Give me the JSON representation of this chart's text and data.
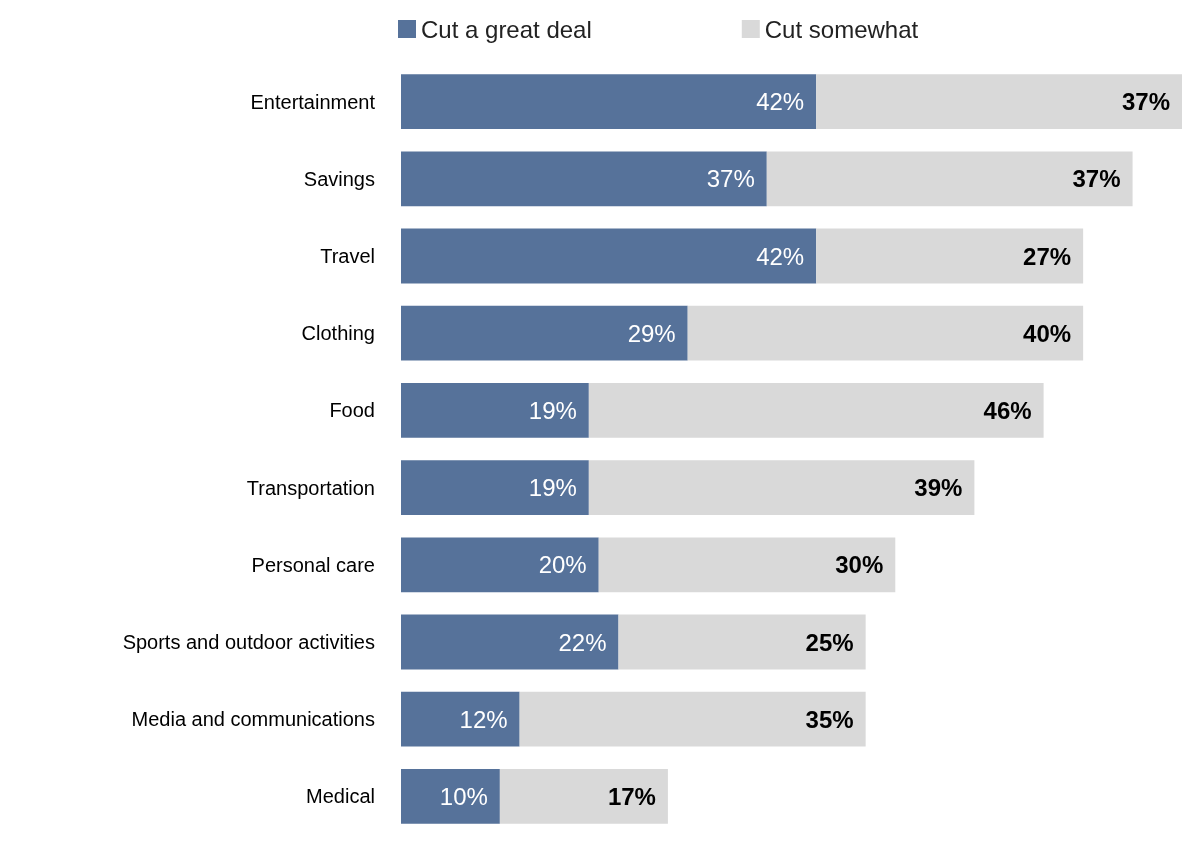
{
  "chart_data": {
    "type": "bar",
    "orientation": "horizontal",
    "stacked": true,
    "legend": "top",
    "categories": [
      "Entertainment",
      "Savings",
      "Travel",
      "Clothing",
      "Food",
      "Transportation",
      "Personal care",
      "Sports and outdoor activities",
      "Media and communications",
      "Medical"
    ],
    "series": [
      {
        "name": "Cut a great deal",
        "color": "#56729a",
        "values": [
          42,
          37,
          42,
          29,
          19,
          19,
          20,
          22,
          12,
          10
        ],
        "value_labels": [
          "42%",
          "37%",
          "42%",
          "29%",
          "19%",
          "19%",
          "20%",
          "22%",
          "12%",
          "10%"
        ]
      },
      {
        "name": "Cut somewhat",
        "color": "#d9d9d9",
        "values": [
          37,
          37,
          27,
          40,
          46,
          39,
          30,
          25,
          35,
          17
        ],
        "value_labels": [
          "37%",
          "37%",
          "27%",
          "40%",
          "46%",
          "39%",
          "30%",
          "25%",
          "35%",
          "17%"
        ]
      }
    ]
  }
}
